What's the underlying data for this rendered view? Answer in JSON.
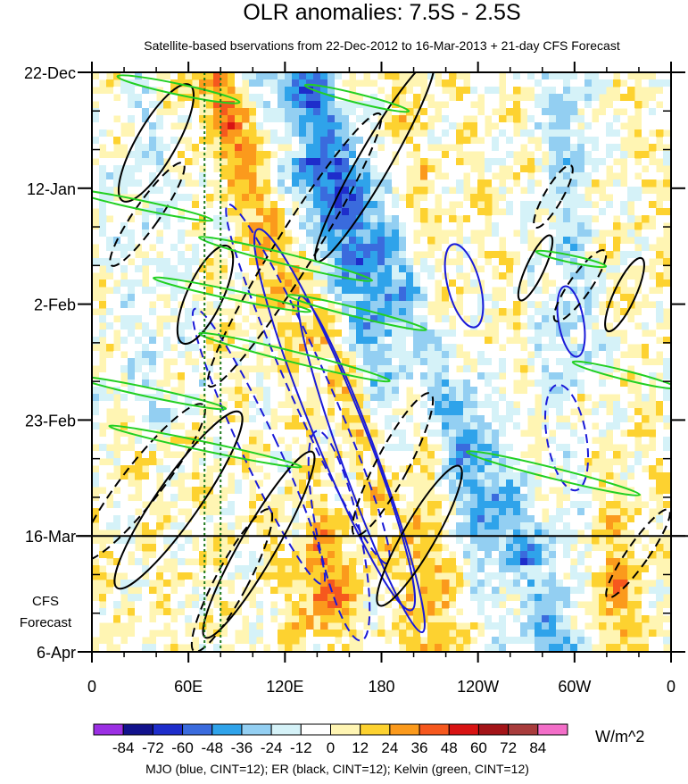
{
  "chart_data": {
    "type": "heatmap",
    "title": "OLR anomalies: 7.5S - 2.5S",
    "subtitle": "Satellite-based bservations from 22-Dec-2012 to 16-Mar-2013 + 21-day CFS Forecast",
    "x_tick_labels": [
      "0",
      "60E",
      "120E",
      "180",
      "120W",
      "60W",
      "0"
    ],
    "x_ticks_deg_east": [
      0,
      60,
      120,
      180,
      240,
      300,
      360
    ],
    "y_tick_labels": [
      "22-Dec",
      "12-Jan",
      "2-Feb",
      "23-Feb",
      "16-Mar",
      "6-Apr"
    ],
    "y_ticks": [
      "2012-12-22",
      "2013-01-12",
      "2013-02-02",
      "2013-02-23",
      "2013-03-16",
      "2013-04-06"
    ],
    "observation_end": "2013-03-16",
    "forecast_label": [
      "CFS",
      "Forecast"
    ],
    "reference_lines_deg_east": [
      70,
      80
    ],
    "colorbar": {
      "levels": [
        -84,
        -72,
        -60,
        -48,
        -36,
        -24,
        -12,
        0,
        12,
        24,
        36,
        48,
        60,
        72,
        84
      ],
      "colors": [
        "#9b2fe3",
        "#12128c",
        "#1e2dcb",
        "#3a6bdd",
        "#2fa3ea",
        "#93cff2",
        "#d5f2f8",
        "#ffffff",
        "#fff5b3",
        "#fdd230",
        "#fb9a1c",
        "#f6581e",
        "#d81313",
        "#a31418",
        "#a83c3c",
        "#f36ec8"
      ],
      "units": "W/m^2"
    },
    "colors": {
      "mjo": "#1a1ad8",
      "er": "#000000",
      "kelvin": "#22d022",
      "ref_line": "#1f7a1f"
    },
    "caption": "MJO (blue, CINT=12); ER (black, CINT=12); Kelvin (green, CINT=12)"
  }
}
